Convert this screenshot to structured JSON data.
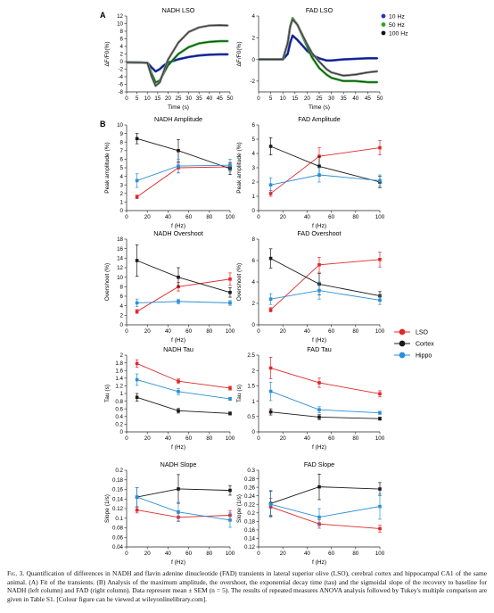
{
  "panel_labels": {
    "A": "A",
    "B": "B"
  },
  "colors": {
    "lso_a": "#7f7f7f",
    "red": "#e0282a",
    "black": "#1a1a1a",
    "blue": "#2b8fd6",
    "hz10": "#1f35c8",
    "hz50": "#2aa32a",
    "hz100": "#111111",
    "hz100_trace": "#7f7f7f"
  },
  "legend_a": [
    "10 Hz",
    "50 Hz",
    "100 Hz"
  ],
  "legend_b": [
    "LSO",
    "Cortex",
    "Hippo"
  ],
  "caption": {
    "figure_label": "Fig. 3.",
    "text": " Quantification of differences in NADH and flavin adenine dinucleotide (FAD) transients in lateral superior olive (LSO), cerebral cortex and hippocampal CA1 of the same animal. (A) Fit of the transients. (B) Analysis of the maximum amplitude, the overshoot, the exponential decay time (tau) and the sigmoidal slope of the recovery to baseline for NADH (left column) and FAD (right column). Data represent mean ± SEM (n = 5). The results of repeated measures ANOVA analysis followed by Tukey's multiple comparison are given in Table S1. [Colour figure can be viewed at wileyonlinelibrary.com]."
  },
  "chart_data": [
    {
      "id": "nadh_lso",
      "type": "line",
      "title": "NADH LSO",
      "xlabel": "Time (s)",
      "ylabel": "ΔF/F0(%)",
      "xlim": [
        0,
        50
      ],
      "ylim": [
        -8,
        12
      ],
      "xticks": [
        "0",
        "5",
        "10",
        "15",
        "20",
        "25",
        "30",
        "35",
        "40",
        "45",
        "50"
      ],
      "yticks": [
        "-8",
        "-6",
        "-4",
        "-2",
        "0",
        "2",
        "4",
        "6",
        "8",
        "10",
        "12"
      ],
      "series": [
        {
          "name": "10 Hz",
          "x": [
            0,
            10,
            12,
            14,
            16,
            18,
            20,
            25,
            30,
            35,
            40,
            45,
            49
          ],
          "y": [
            -0.2,
            -0.3,
            -1.5,
            -2.6,
            -2.0,
            -1.0,
            -0.3,
            0.6,
            1.2,
            1.6,
            1.8,
            1.9,
            1.9
          ]
        },
        {
          "name": "50 Hz",
          "x": [
            0,
            10,
            12,
            14,
            16,
            18,
            20,
            25,
            30,
            35,
            40,
            45,
            49
          ],
          "y": [
            -0.2,
            -0.3,
            -3.0,
            -5.5,
            -5.0,
            -3.0,
            -1.0,
            2.0,
            3.8,
            4.8,
            5.2,
            5.4,
            5.4
          ]
        },
        {
          "name": "100 Hz",
          "x": [
            0,
            10,
            12,
            14,
            16,
            18,
            20,
            25,
            30,
            35,
            40,
            45,
            49
          ],
          "y": [
            -0.2,
            -0.3,
            -3.8,
            -6.4,
            -5.5,
            -2.5,
            0.5,
            5.0,
            7.8,
            9.0,
            9.5,
            9.6,
            9.5
          ]
        }
      ]
    },
    {
      "id": "fad_lso",
      "type": "line",
      "title": "FAD LSO",
      "xlabel": "Time (s)",
      "ylabel": "ΔF/F0(%)",
      "xlim": [
        0,
        50
      ],
      "ylim": [
        -3,
        4
      ],
      "xticks": [
        "0",
        "5",
        "10",
        "15",
        "20",
        "25",
        "30",
        "35",
        "40",
        "45",
        "50"
      ],
      "yticks": [
        "-2",
        "0",
        "2",
        "4"
      ],
      "series": [
        {
          "name": "10 Hz",
          "x": [
            0,
            10,
            12,
            13,
            14,
            16,
            18,
            20,
            22,
            25,
            28,
            30,
            35,
            40,
            45,
            49
          ],
          "y": [
            0,
            0,
            0.5,
            1.5,
            2.2,
            1.8,
            1.3,
            0.8,
            0.4,
            0.1,
            -0.1,
            -0.1,
            0,
            0.05,
            0.1,
            0.1
          ]
        },
        {
          "name": "50 Hz",
          "x": [
            0,
            10,
            12,
            13,
            14,
            16,
            18,
            20,
            22,
            25,
            28,
            30,
            35,
            40,
            45,
            49
          ],
          "y": [
            0,
            0,
            1.5,
            3.0,
            3.8,
            3.2,
            2.2,
            1.2,
            0.2,
            -0.8,
            -1.4,
            -1.7,
            -2.0,
            -2.0,
            -2.1,
            -2.1
          ]
        },
        {
          "name": "100 Hz",
          "x": [
            0,
            10,
            12,
            13,
            14,
            16,
            18,
            20,
            22,
            25,
            28,
            30,
            35,
            40,
            45,
            49
          ],
          "y": [
            0,
            0,
            1.5,
            3.0,
            3.7,
            3.2,
            2.3,
            1.4,
            0.6,
            -0.2,
            -0.9,
            -1.2,
            -1.5,
            -1.4,
            -1.2,
            -1.1
          ]
        }
      ]
    },
    {
      "id": "nadh_amp",
      "type": "line",
      "title": "NADH Amplitude",
      "xlabel": "f (Hz)",
      "ylabel": "Peak amplitude (%)",
      "x": [
        10,
        50,
        100
      ],
      "xlim": [
        0,
        100
      ],
      "ylim": [
        0,
        10
      ],
      "xticks": [
        "0",
        "20",
        "40",
        "60",
        "80",
        "100"
      ],
      "yticks": [
        "0",
        "1",
        "2",
        "3",
        "4",
        "5",
        "6",
        "7",
        "8",
        "9",
        "10"
      ],
      "series": [
        {
          "name": "LSO",
          "values": [
            1.6,
            5.0,
            5.1
          ],
          "err": [
            0.2,
            0.6,
            0.5
          ]
        },
        {
          "name": "Cortex",
          "values": [
            8.4,
            7.0,
            4.9
          ],
          "err": [
            0.6,
            1.3,
            0.7
          ]
        },
        {
          "name": "Hippo",
          "values": [
            3.5,
            5.2,
            5.3
          ],
          "err": [
            0.8,
            0.8,
            0.7
          ]
        }
      ]
    },
    {
      "id": "fad_amp",
      "type": "line",
      "title": "FAD Amplitude",
      "xlabel": "f (Hz)",
      "ylabel": "Peak amplitude (%)",
      "x": [
        10,
        50,
        100
      ],
      "xlim": [
        0,
        100
      ],
      "ylim": [
        0,
        6
      ],
      "xticks": [
        "0",
        "20",
        "40",
        "60",
        "80",
        "100"
      ],
      "yticks": [
        "0",
        "1",
        "2",
        "3",
        "4",
        "5",
        "6"
      ],
      "series": [
        {
          "name": "LSO",
          "values": [
            1.2,
            3.8,
            4.4
          ],
          "err": [
            0.2,
            0.6,
            0.5
          ]
        },
        {
          "name": "Cortex",
          "values": [
            4.5,
            3.1,
            2.0
          ],
          "err": [
            0.6,
            0.7,
            0.4
          ]
        },
        {
          "name": "Hippo",
          "values": [
            1.8,
            2.5,
            2.1
          ],
          "err": [
            0.5,
            0.5,
            0.4
          ]
        }
      ]
    },
    {
      "id": "nadh_over",
      "type": "line",
      "title": "NADH Overshoot",
      "xlabel": "f (Hz)",
      "ylabel": "Overshoot (%)",
      "x": [
        10,
        50,
        100
      ],
      "xlim": [
        0,
        100
      ],
      "ylim": [
        0,
        18
      ],
      "xticks": [
        "0",
        "20",
        "40",
        "60",
        "80",
        "100"
      ],
      "yticks": [
        "0",
        "2",
        "4",
        "6",
        "8",
        "10",
        "12",
        "14",
        "16",
        "18"
      ],
      "series": [
        {
          "name": "LSO",
          "values": [
            2.8,
            8.0,
            9.6
          ],
          "err": [
            0.4,
            0.9,
            1.3
          ]
        },
        {
          "name": "Cortex",
          "values": [
            13.5,
            10.0,
            6.8
          ],
          "err": [
            3.3,
            2.0,
            1.0
          ]
        },
        {
          "name": "Hippo",
          "values": [
            4.6,
            4.9,
            4.6
          ],
          "err": [
            0.8,
            0.5,
            0.5
          ]
        }
      ]
    },
    {
      "id": "fad_over",
      "type": "line",
      "title": "FAD Overshoot",
      "xlabel": "f (Hz)",
      "ylabel": "Overshoot (%)",
      "x": [
        10,
        50,
        100
      ],
      "xlim": [
        0,
        100
      ],
      "ylim": [
        0,
        8
      ],
      "xticks": [
        "0",
        "20",
        "40",
        "60",
        "80",
        "100"
      ],
      "yticks": [
        "0",
        "2",
        "4",
        "6",
        "8"
      ],
      "series": [
        {
          "name": "LSO",
          "values": [
            1.4,
            5.6,
            6.1
          ],
          "err": [
            0.2,
            0.7,
            0.7
          ]
        },
        {
          "name": "Cortex",
          "values": [
            6.2,
            3.8,
            2.7
          ],
          "err": [
            0.9,
            1.0,
            0.4
          ]
        },
        {
          "name": "Hippo",
          "values": [
            2.4,
            3.2,
            2.3
          ],
          "err": [
            0.5,
            0.8,
            0.4
          ]
        }
      ]
    },
    {
      "id": "nadh_tau",
      "type": "line",
      "title": "NADH Tau",
      "xlabel": "f (Hz)",
      "ylabel": "Tau (s)",
      "x": [
        10,
        50,
        100
      ],
      "xlim": [
        0,
        100
      ],
      "ylim": [
        0,
        2
      ],
      "xticks": [
        "0",
        "20",
        "40",
        "60",
        "80",
        "100"
      ],
      "yticks": [
        "0",
        "0.2",
        "0.4",
        "0.6",
        "0.8",
        "1",
        "1.2",
        "1.4",
        "1.6",
        "1.8",
        "2"
      ],
      "series": [
        {
          "name": "LSO",
          "values": [
            1.78,
            1.32,
            1.14
          ],
          "err": [
            0.1,
            0.06,
            0.05
          ]
        },
        {
          "name": "Cortex",
          "values": [
            0.9,
            0.55,
            0.48
          ],
          "err": [
            0.1,
            0.06,
            0.04
          ]
        },
        {
          "name": "Hippo",
          "values": [
            1.36,
            1.05,
            0.86
          ],
          "err": [
            0.15,
            0.08,
            0.04
          ]
        }
      ]
    },
    {
      "id": "fad_tau",
      "type": "line",
      "title": "FAD Tau",
      "xlabel": "f (Hz)",
      "ylabel": "Tau (s)",
      "x": [
        10,
        50,
        100
      ],
      "xlim": [
        0,
        100
      ],
      "ylim": [
        0,
        2.5
      ],
      "xticks": [
        "0",
        "20",
        "40",
        "60",
        "80",
        "100"
      ],
      "yticks": [
        "0",
        "0.5",
        "1",
        "1.5",
        "2",
        "2.5"
      ],
      "series": [
        {
          "name": "LSO",
          "values": [
            2.08,
            1.6,
            1.24
          ],
          "err": [
            0.35,
            0.15,
            0.1
          ]
        },
        {
          "name": "Cortex",
          "values": [
            0.65,
            0.48,
            0.43
          ],
          "err": [
            0.1,
            0.08,
            0.05
          ]
        },
        {
          "name": "Hippo",
          "values": [
            1.32,
            0.72,
            0.62
          ],
          "err": [
            0.3,
            0.1,
            0.05
          ]
        }
      ]
    },
    {
      "id": "nadh_slope",
      "type": "line",
      "title": "NADH Slope",
      "xlabel": "f (Hz)",
      "ylabel": "Slope (1/s)",
      "x": [
        10,
        50,
        100
      ],
      "xlim": [
        0,
        100
      ],
      "ylim": [
        0.04,
        0.2
      ],
      "xticks": [
        "0",
        "20",
        "40",
        "60",
        "80",
        "100"
      ],
      "yticks": [
        "0.04",
        "0.06",
        "0.08",
        "0.1",
        "0.12",
        "0.14",
        "0.16",
        "0.18",
        "0.2"
      ],
      "series": [
        {
          "name": "LSO",
          "values": [
            0.117,
            0.102,
            0.106
          ],
          "err": [
            0.006,
            0.008,
            0.01
          ]
        },
        {
          "name": "Cortex",
          "values": [
            0.144,
            0.161,
            0.158
          ],
          "err": [
            0.02,
            0.03,
            0.01
          ]
        },
        {
          "name": "Hippo",
          "values": [
            0.144,
            0.113,
            0.096
          ],
          "err": [
            0.02,
            0.02,
            0.015
          ]
        }
      ]
    },
    {
      "id": "fad_slope",
      "type": "line",
      "title": "FAD Slope",
      "xlabel": "f (Hz)",
      "ylabel": "Slope (1/s)",
      "x": [
        10,
        50,
        100
      ],
      "xlim": [
        0,
        100
      ],
      "ylim": [
        0.12,
        0.3
      ],
      "xticks": [
        "0",
        "20",
        "40",
        "60",
        "80",
        "100"
      ],
      "yticks": [
        "0.12",
        "0.14",
        "0.16",
        "0.18",
        "0.2",
        "0.22",
        "0.24",
        "0.26",
        "0.28",
        "0.3"
      ],
      "series": [
        {
          "name": "LSO",
          "values": [
            0.214,
            0.174,
            0.163
          ],
          "err": [
            0.02,
            0.01,
            0.008
          ]
        },
        {
          "name": "Cortex",
          "values": [
            0.222,
            0.261,
            0.256
          ],
          "err": [
            0.03,
            0.03,
            0.015
          ]
        },
        {
          "name": "Hippo",
          "values": [
            0.22,
            0.19,
            0.215
          ],
          "err": [
            0.03,
            0.02,
            0.03
          ]
        }
      ]
    }
  ]
}
